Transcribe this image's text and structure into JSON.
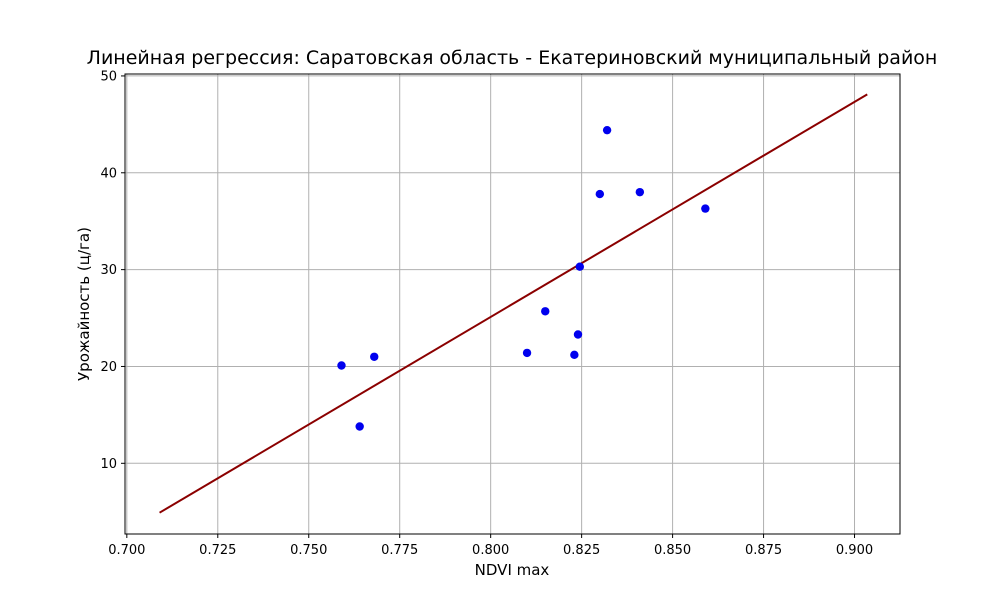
{
  "chart_data": {
    "type": "scatter",
    "title": "Линейная регрессия: Саратовская область - Екатериновский муниципальный район",
    "xlabel": "NDVI max",
    "ylabel": "Урожайность (ц/га)",
    "xlim": [
      0.6995,
      0.9125
    ],
    "ylim": [
      2.7,
      50.2
    ],
    "xticks": [
      0.7,
      0.725,
      0.75,
      0.775,
      0.8,
      0.825,
      0.85,
      0.875,
      0.9
    ],
    "xtick_labels": [
      "0.700",
      "0.725",
      "0.750",
      "0.775",
      "0.800",
      "0.825",
      "0.850",
      "0.875",
      "0.900"
    ],
    "yticks": [
      10,
      20,
      30,
      40,
      50
    ],
    "ytick_labels": [
      "10",
      "20",
      "30",
      "40",
      "50"
    ],
    "grid": true,
    "series": [
      {
        "type": "scatter",
        "color": "#0000ee",
        "points": [
          {
            "x": 0.759,
            "y": 20.1
          },
          {
            "x": 0.764,
            "y": 13.8
          },
          {
            "x": 0.768,
            "y": 21.0
          },
          {
            "x": 0.81,
            "y": 21.4
          },
          {
            "x": 0.815,
            "y": 25.7
          },
          {
            "x": 0.823,
            "y": 21.2
          },
          {
            "x": 0.824,
            "y": 23.3
          },
          {
            "x": 0.8245,
            "y": 30.3
          },
          {
            "x": 0.83,
            "y": 37.8
          },
          {
            "x": 0.832,
            "y": 44.4
          },
          {
            "x": 0.841,
            "y": 38.0
          },
          {
            "x": 0.859,
            "y": 36.3
          }
        ]
      },
      {
        "type": "line",
        "color": "#8b0000",
        "points": [
          {
            "x": 0.709,
            "y": 4.9
          },
          {
            "x": 0.9035,
            "y": 48.1
          }
        ]
      }
    ]
  }
}
